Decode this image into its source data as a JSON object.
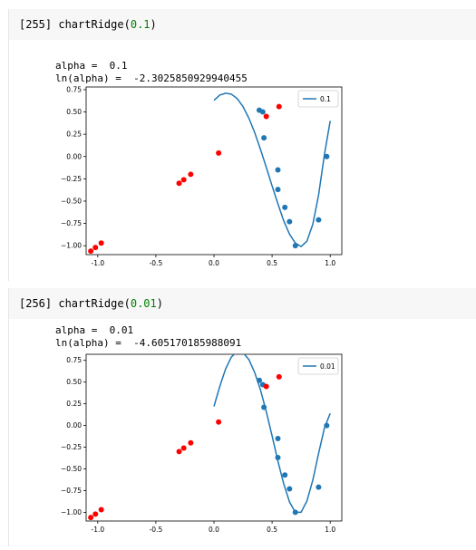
{
  "cells": [
    {
      "prompt": "[255]",
      "code_fn": "chartRidge(",
      "code_arg": "0.1",
      "code_close": ")",
      "alpha_line": "alpha =  0.1",
      "ln_line": "ln(alpha) =  -2.3025850929940455"
    },
    {
      "prompt": "[256]",
      "code_fn": "chartRidge(",
      "code_arg": "0.01",
      "code_close": ")",
      "alpha_line": "alpha =  0.01",
      "ln_line": "ln(alpha) =  -4.605170185988091"
    }
  ],
  "colors": {
    "line": "#1f77b4",
    "blue_points": "#1f77b4",
    "red_points": "#ff0000",
    "cell_bg": "#f7f7f7",
    "prompt_num": "#303f9f",
    "arg": "#008000"
  },
  "chart_data": [
    {
      "type": "scatter",
      "title": "",
      "xlabel": "",
      "ylabel": "",
      "xlim": [
        -1.1,
        1.1
      ],
      "ylim": [
        -1.1,
        0.78
      ],
      "xticks": [
        "-1.0",
        "-0.5",
        "0.0",
        "0.5",
        "1.0"
      ],
      "xtick_values": [
        -1.0,
        -0.5,
        0.0,
        0.5,
        1.0
      ],
      "yticks": [
        "0.75",
        "0.50",
        "0.25",
        "0.00",
        "−0.25",
        "−0.50",
        "−0.75",
        "−1.00"
      ],
      "ytick_values": [
        0.75,
        0.5,
        0.25,
        0.0,
        -0.25,
        -0.5,
        -0.75,
        -1.0
      ],
      "legend": "top-right",
      "grid": false,
      "series": [
        {
          "name": "0.1",
          "kind": "line",
          "x": [
            0.0,
            0.05,
            0.1,
            0.15,
            0.2,
            0.25,
            0.3,
            0.35,
            0.4,
            0.45,
            0.5,
            0.55,
            0.6,
            0.65,
            0.7,
            0.75,
            0.8,
            0.85,
            0.9,
            0.95,
            1.0
          ],
          "y": [
            0.63,
            0.69,
            0.71,
            0.7,
            0.65,
            0.56,
            0.43,
            0.27,
            0.08,
            -0.12,
            -0.33,
            -0.53,
            -0.72,
            -0.87,
            -0.97,
            -1.01,
            -0.95,
            -0.76,
            -0.43,
            0.02,
            0.4
          ]
        },
        {
          "kind": "scatter-blue",
          "x": [
            0.39,
            0.42,
            0.43,
            0.55,
            0.55,
            0.61,
            0.65,
            0.7,
            0.9,
            0.97
          ],
          "y": [
            0.52,
            0.5,
            0.21,
            -0.15,
            -0.37,
            -0.57,
            -0.73,
            -1.0,
            -0.71,
            0.0
          ]
        },
        {
          "kind": "scatter-red",
          "x": [
            -1.06,
            -1.02,
            -0.97,
            -0.3,
            -0.26,
            -0.2,
            0.04,
            0.45,
            0.56
          ],
          "y": [
            -1.06,
            -1.02,
            -0.97,
            -0.3,
            -0.26,
            -0.2,
            0.04,
            0.45,
            0.56
          ]
        }
      ]
    },
    {
      "type": "scatter",
      "title": "",
      "xlabel": "",
      "ylabel": "",
      "xlim": [
        -1.1,
        1.1
      ],
      "ylim": [
        -1.1,
        0.82
      ],
      "xticks": [
        "-1.0",
        "-0.5",
        "0.0",
        "0.5",
        "1.0"
      ],
      "xtick_values": [
        -1.0,
        -0.5,
        0.0,
        0.5,
        1.0
      ],
      "yticks": [
        "0.75",
        "0.50",
        "0.25",
        "0.00",
        "−0.25",
        "−0.50",
        "−0.75",
        "−1.00"
      ],
      "ytick_values": [
        0.75,
        0.5,
        0.25,
        0.0,
        -0.25,
        -0.5,
        -0.75,
        -1.0
      ],
      "legend": "top-right",
      "grid": false,
      "series": [
        {
          "name": "0.01",
          "kind": "line",
          "x": [
            0.0,
            0.05,
            0.1,
            0.15,
            0.2,
            0.25,
            0.3,
            0.35,
            0.4,
            0.45,
            0.5,
            0.55,
            0.6,
            0.65,
            0.7,
            0.75,
            0.8,
            0.85,
            0.9,
            0.95,
            1.0
          ],
          "y": [
            0.22,
            0.45,
            0.65,
            0.79,
            0.85,
            0.84,
            0.76,
            0.61,
            0.41,
            0.16,
            -0.12,
            -0.41,
            -0.67,
            -0.88,
            -1.0,
            -1.0,
            -0.87,
            -0.63,
            -0.32,
            -0.03,
            0.14
          ]
        },
        {
          "kind": "scatter-blue",
          "x": [
            0.39,
            0.42,
            0.43,
            0.55,
            0.55,
            0.61,
            0.65,
            0.7,
            0.9,
            0.97
          ],
          "y": [
            0.52,
            0.47,
            0.21,
            -0.15,
            -0.37,
            -0.57,
            -0.73,
            -1.0,
            -0.71,
            0.0
          ]
        },
        {
          "kind": "scatter-red",
          "x": [
            -1.06,
            -1.02,
            -0.97,
            -0.3,
            -0.26,
            -0.2,
            0.04,
            0.45,
            0.56
          ],
          "y": [
            -1.06,
            -1.02,
            -0.97,
            -0.3,
            -0.26,
            -0.2,
            0.04,
            0.45,
            0.56
          ]
        }
      ]
    }
  ]
}
